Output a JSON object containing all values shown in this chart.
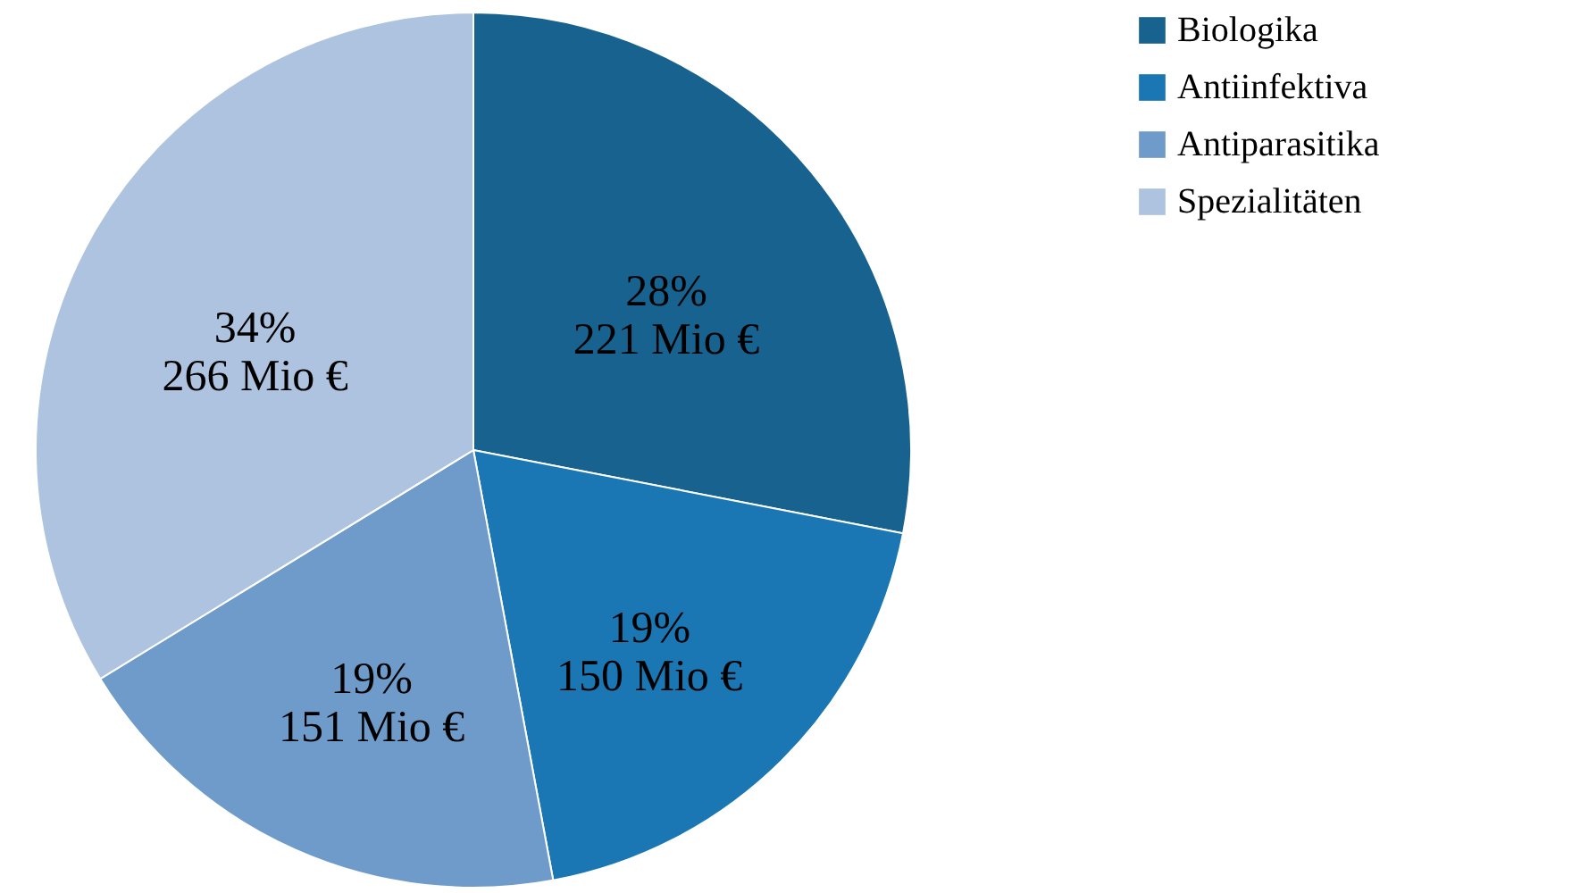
{
  "chart_data": {
    "type": "pie",
    "categories": [
      "Biologika",
      "Antiinfektiva",
      "Antiparasitika",
      "Spezialitäten"
    ],
    "values": [
      221,
      150,
      151,
      266
    ],
    "colors": [
      "#17628f",
      "#1a77b3",
      "#6f9bca",
      "#adc3df"
    ],
    "value_labels": [
      "28%\n221 Mio €",
      "19%\n150 Mio €",
      "19%\n151 Mio €",
      "34%\n266 Mio €"
    ],
    "legend": "right"
  }
}
